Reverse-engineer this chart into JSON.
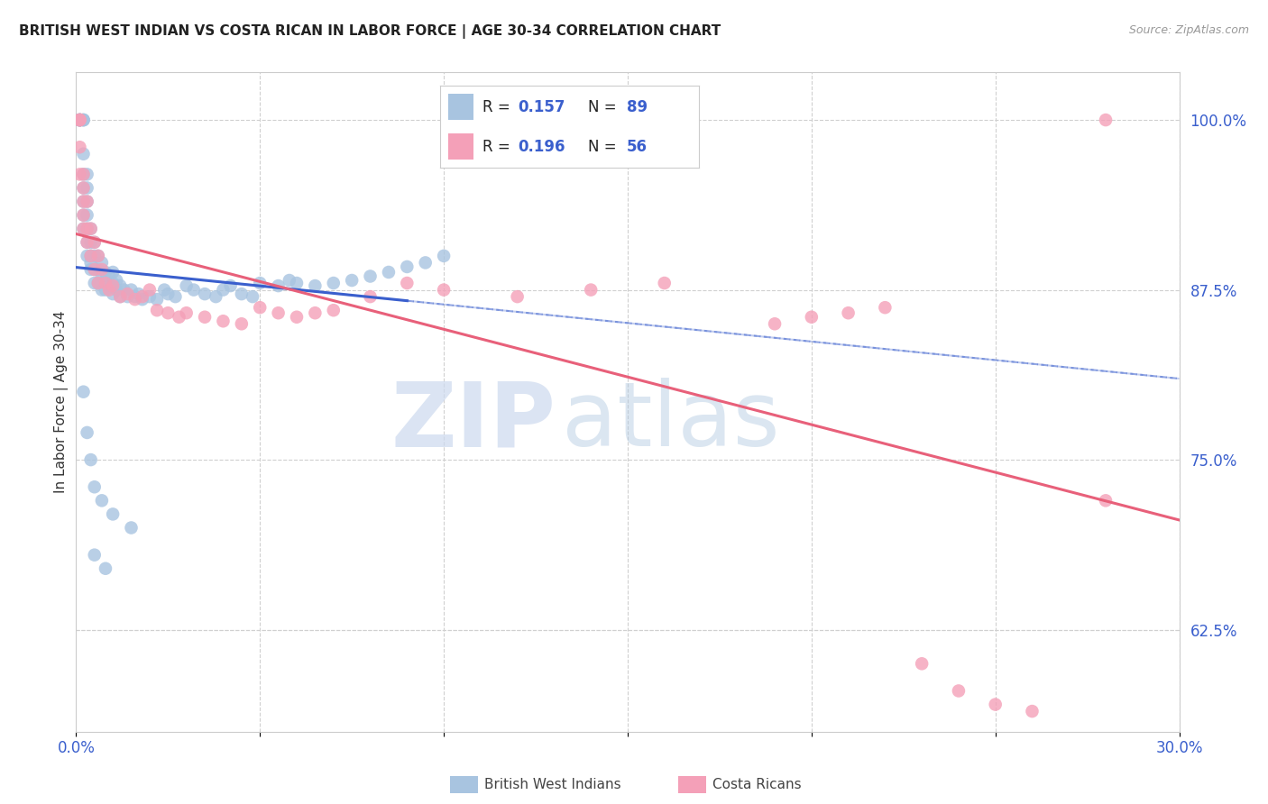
{
  "title": "BRITISH WEST INDIAN VS COSTA RICAN IN LABOR FORCE | AGE 30-34 CORRELATION CHART",
  "source": "Source: ZipAtlas.com",
  "ylabel": "In Labor Force | Age 30-34",
  "r_blue": 0.157,
  "n_blue": 89,
  "r_pink": 0.196,
  "n_pink": 56,
  "xlim": [
    0.0,
    0.3
  ],
  "ylim": [
    0.55,
    1.035
  ],
  "yticks_right": [
    1.0,
    0.875,
    0.75,
    0.625
  ],
  "ytick_labels_right": [
    "100.0%",
    "87.5%",
    "75.0%",
    "62.5%"
  ],
  "blue_color": "#a8c4e0",
  "pink_color": "#f4a0b8",
  "blue_line_color": "#3a5fcd",
  "pink_line_color": "#e8607a",
  "background_color": "#ffffff",
  "blue_scatter_x": [
    0.001,
    0.001,
    0.001,
    0.001,
    0.001,
    0.001,
    0.002,
    0.002,
    0.002,
    0.002,
    0.002,
    0.002,
    0.002,
    0.002,
    0.002,
    0.003,
    0.003,
    0.003,
    0.003,
    0.003,
    0.003,
    0.003,
    0.004,
    0.004,
    0.004,
    0.004,
    0.004,
    0.005,
    0.005,
    0.005,
    0.005,
    0.006,
    0.006,
    0.006,
    0.007,
    0.007,
    0.007,
    0.008,
    0.008,
    0.008,
    0.009,
    0.009,
    0.01,
    0.01,
    0.01,
    0.011,
    0.011,
    0.012,
    0.012,
    0.013,
    0.014,
    0.015,
    0.016,
    0.017,
    0.018,
    0.02,
    0.022,
    0.024,
    0.025,
    0.027,
    0.03,
    0.032,
    0.035,
    0.038,
    0.04,
    0.042,
    0.045,
    0.048,
    0.05,
    0.055,
    0.058,
    0.06,
    0.065,
    0.07,
    0.075,
    0.08,
    0.085,
    0.09,
    0.095,
    0.1,
    0.002,
    0.003,
    0.004,
    0.005,
    0.007,
    0.01,
    0.015,
    0.005,
    0.008
  ],
  "blue_scatter_y": [
    1.0,
    1.0,
    1.0,
    1.0,
    1.0,
    1.0,
    1.0,
    1.0,
    1.0,
    0.975,
    0.96,
    0.95,
    0.94,
    0.93,
    0.92,
    0.96,
    0.95,
    0.94,
    0.93,
    0.92,
    0.91,
    0.9,
    0.92,
    0.91,
    0.9,
    0.895,
    0.89,
    0.91,
    0.9,
    0.89,
    0.88,
    0.9,
    0.89,
    0.88,
    0.895,
    0.885,
    0.875,
    0.888,
    0.882,
    0.875,
    0.885,
    0.878,
    0.888,
    0.88,
    0.872,
    0.882,
    0.875,
    0.878,
    0.87,
    0.875,
    0.87,
    0.875,
    0.87,
    0.872,
    0.868,
    0.87,
    0.868,
    0.875,
    0.872,
    0.87,
    0.878,
    0.875,
    0.872,
    0.87,
    0.875,
    0.878,
    0.872,
    0.87,
    0.88,
    0.878,
    0.882,
    0.88,
    0.878,
    0.88,
    0.882,
    0.885,
    0.888,
    0.892,
    0.895,
    0.9,
    0.8,
    0.77,
    0.75,
    0.73,
    0.72,
    0.71,
    0.7,
    0.68,
    0.67
  ],
  "pink_scatter_x": [
    0.001,
    0.001,
    0.001,
    0.001,
    0.001,
    0.002,
    0.002,
    0.002,
    0.002,
    0.002,
    0.003,
    0.003,
    0.003,
    0.004,
    0.004,
    0.005,
    0.005,
    0.006,
    0.006,
    0.007,
    0.008,
    0.009,
    0.01,
    0.012,
    0.014,
    0.016,
    0.018,
    0.02,
    0.022,
    0.025,
    0.028,
    0.03,
    0.035,
    0.04,
    0.045,
    0.05,
    0.055,
    0.06,
    0.065,
    0.07,
    0.08,
    0.09,
    0.1,
    0.12,
    0.14,
    0.16,
    0.19,
    0.2,
    0.21,
    0.22,
    0.23,
    0.24,
    0.25,
    0.26,
    0.28,
    0.28
  ],
  "pink_scatter_y": [
    1.0,
    1.0,
    1.0,
    0.98,
    0.96,
    0.96,
    0.95,
    0.94,
    0.93,
    0.92,
    0.94,
    0.92,
    0.91,
    0.92,
    0.9,
    0.91,
    0.89,
    0.9,
    0.88,
    0.89,
    0.88,
    0.875,
    0.878,
    0.87,
    0.872,
    0.868,
    0.87,
    0.875,
    0.86,
    0.858,
    0.855,
    0.858,
    0.855,
    0.852,
    0.85,
    0.862,
    0.858,
    0.855,
    0.858,
    0.86,
    0.87,
    0.88,
    0.875,
    0.87,
    0.875,
    0.88,
    0.85,
    0.855,
    0.858,
    0.862,
    0.6,
    0.58,
    0.57,
    0.565,
    1.0,
    0.72
  ]
}
